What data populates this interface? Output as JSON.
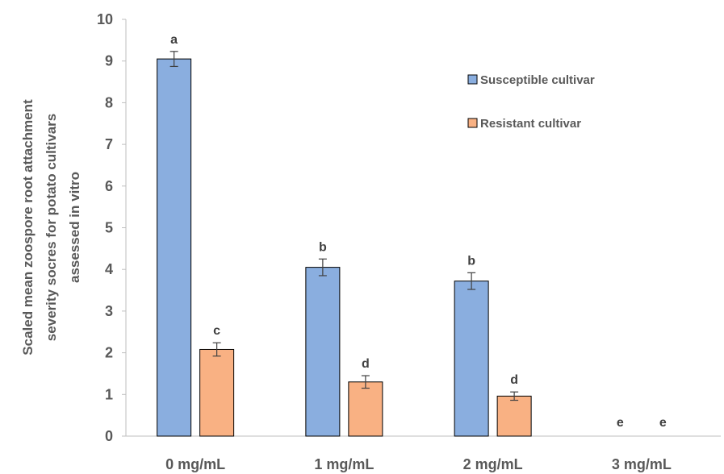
{
  "chart_data": {
    "type": "bar",
    "title": "",
    "ylabel_lines": [
      "Scaled mean zoospore root attachment",
      "severity socres for potato cultivars",
      "assessed in vitro"
    ],
    "xlabel": "",
    "categories": [
      "0 mg/mL",
      "1 mg/mL",
      "2 mg/mL",
      "3 mg/mL"
    ],
    "ylim": [
      0,
      10
    ],
    "yticks": [
      "0",
      "1",
      "2",
      "3",
      "4",
      "5",
      "6",
      "7",
      "8",
      "9",
      "10"
    ],
    "grid": false,
    "legend_position": "top-right",
    "series": [
      {
        "name": "Susceptible cultivar",
        "color": "#8AAEDF",
        "values": [
          9.05,
          4.05,
          3.72,
          0
        ],
        "errors": [
          0.18,
          0.2,
          0.2,
          0
        ],
        "significance": [
          "a",
          "b",
          "b",
          "e"
        ]
      },
      {
        "name": "Resistant cultivar",
        "color": "#F9B183",
        "values": [
          2.08,
          1.3,
          0.96,
          0
        ],
        "errors": [
          0.16,
          0.15,
          0.1,
          0
        ],
        "significance": [
          "c",
          "d",
          "d",
          "e"
        ]
      }
    ]
  }
}
